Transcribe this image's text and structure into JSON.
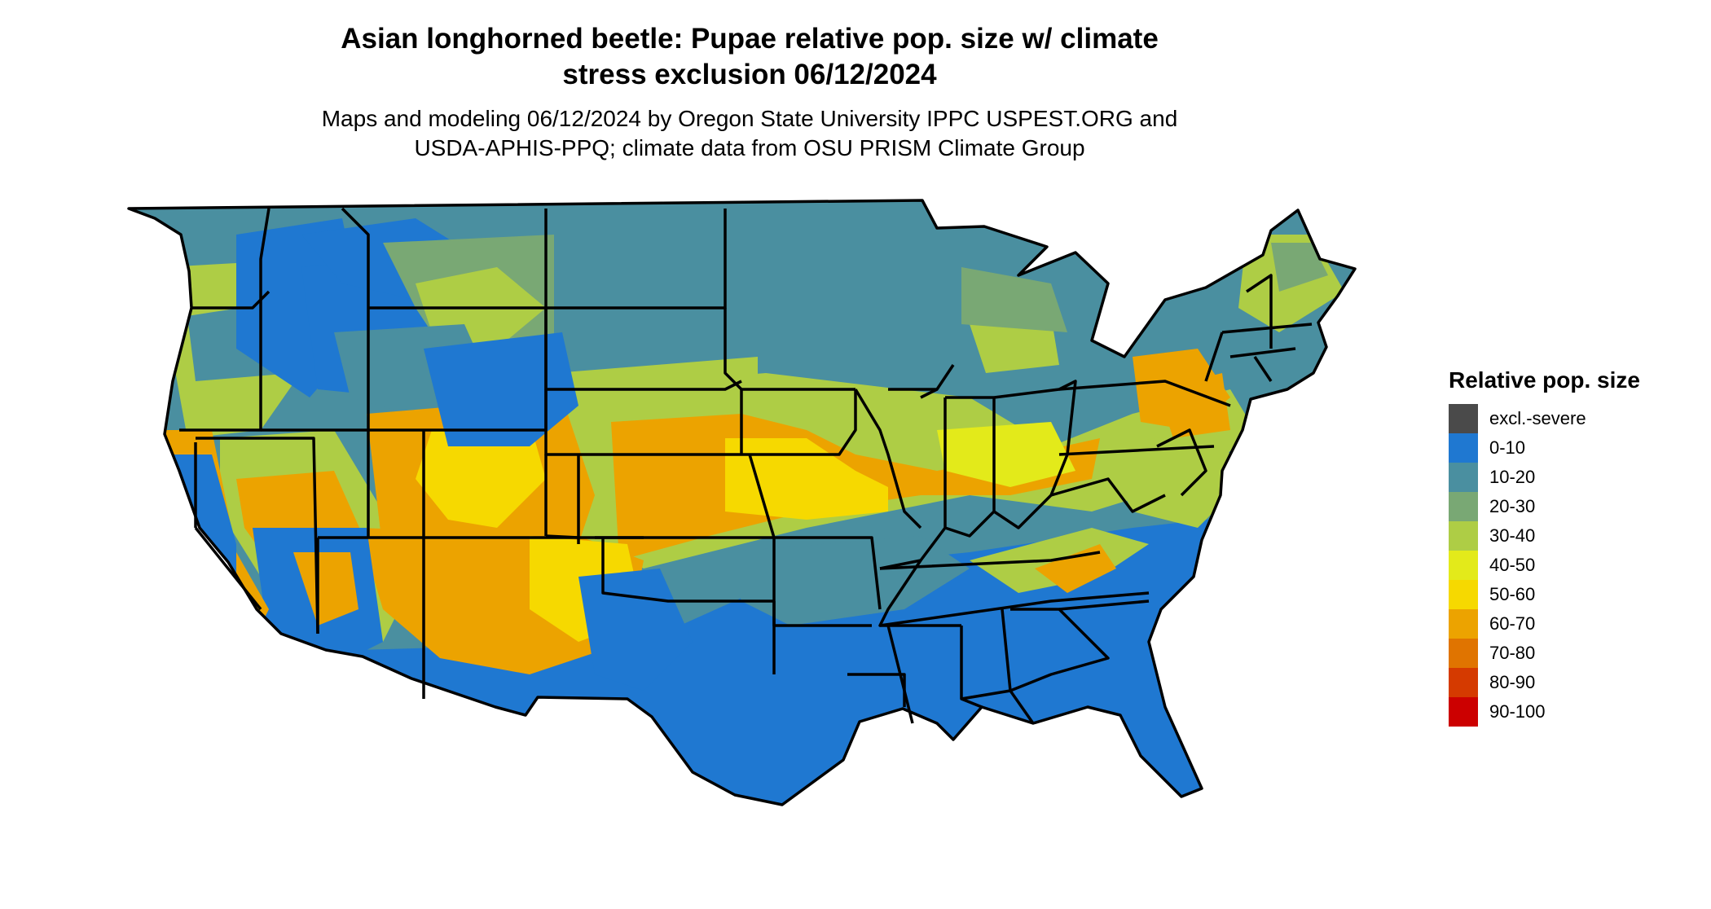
{
  "title_line1": "Asian longhorned beetle: Pupae relative pop. size w/ climate",
  "title_line2": "stress exclusion 06/12/2024",
  "subtitle_line1": "Maps and modeling 06/12/2024 by Oregon State University IPPC USPEST.ORG and",
  "subtitle_line2": "USDA-APHIS-PPQ; climate data from OSU PRISM Climate Group",
  "legend": {
    "title": "Relative pop. size",
    "items": [
      {
        "label": "excl.-severe",
        "color": "#4a4a4a"
      },
      {
        "label": "0-10",
        "color": "#1f78d1"
      },
      {
        "label": "10-20",
        "color": "#4a8fa0"
      },
      {
        "label": "20-30",
        "color": "#79a874"
      },
      {
        "label": "30-40",
        "color": "#aecd45"
      },
      {
        "label": "40-50",
        "color": "#e3ea1a"
      },
      {
        "label": "50-60",
        "color": "#f6d900"
      },
      {
        "label": "60-70",
        "color": "#eca300"
      },
      {
        "label": "70-80",
        "color": "#e07400"
      },
      {
        "label": "80-90",
        "color": "#d53a00"
      },
      {
        "label": "90-100",
        "color": "#cc0000"
      }
    ]
  }
}
